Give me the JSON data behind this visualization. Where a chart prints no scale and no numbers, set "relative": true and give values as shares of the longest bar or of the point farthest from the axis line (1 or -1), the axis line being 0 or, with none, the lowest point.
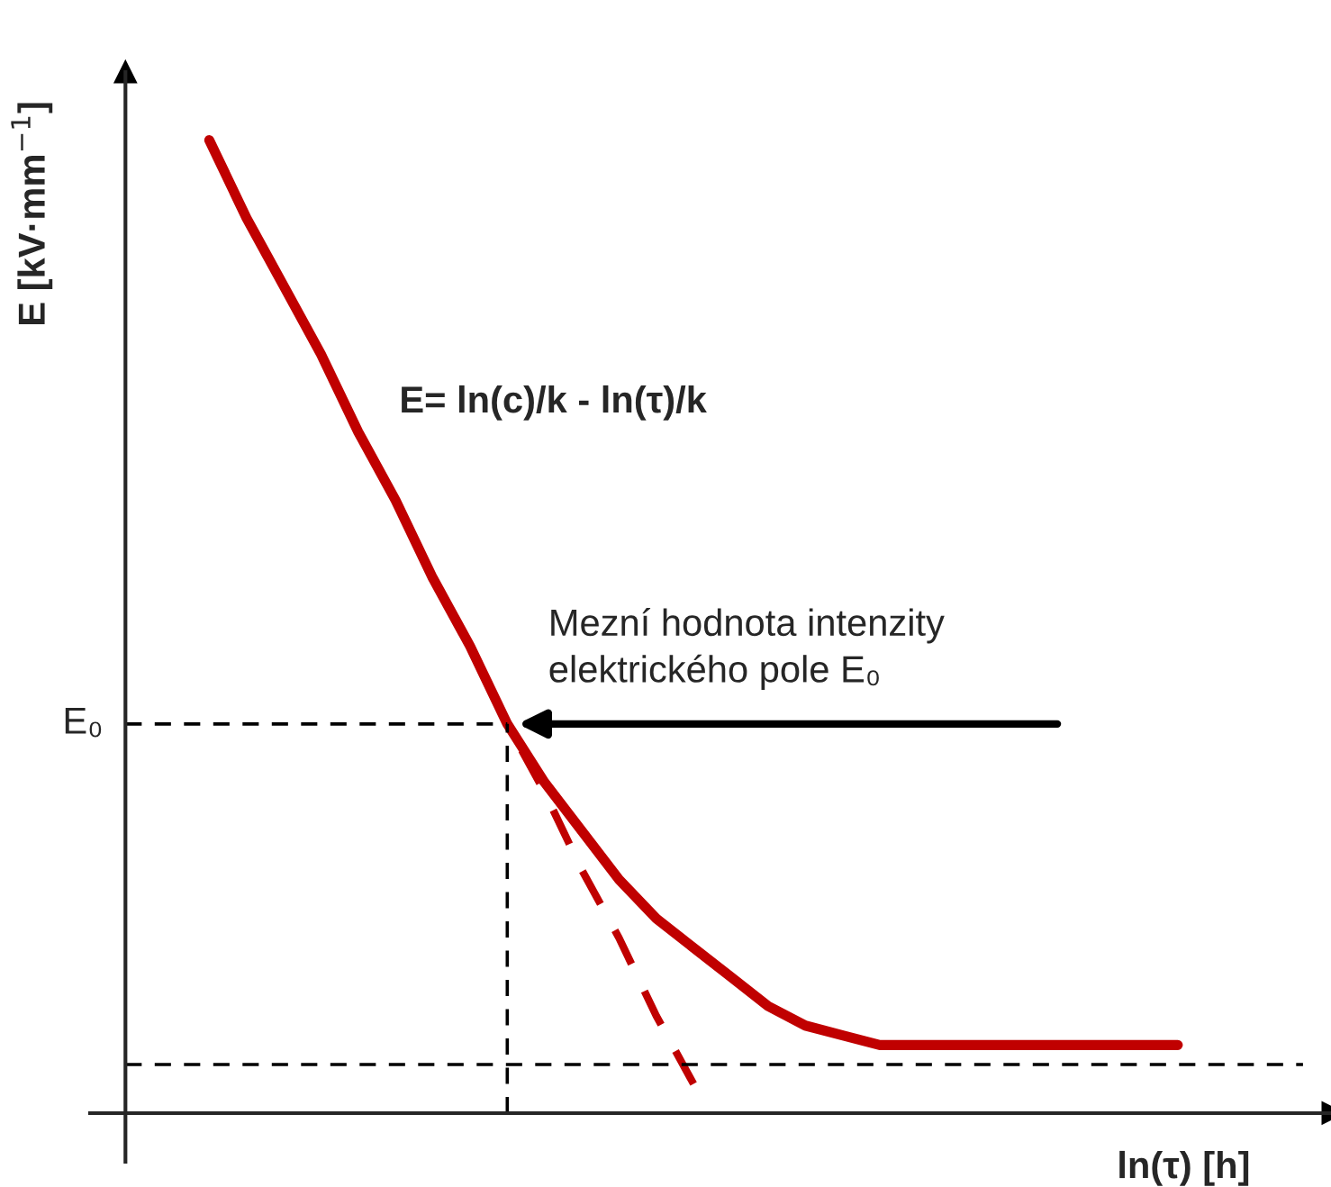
{
  "chart_data": {
    "type": "line",
    "relative": true,
    "xlabel": "ln(τ) [h]",
    "ylabel": "E [kV·mm$^{−1}$]",
    "categories": [
      null,
      null,
      null,
      null,
      null,
      null,
      null,
      null,
      null,
      null,
      null,
      null,
      null,
      null,
      null,
      null,
      null,
      null,
      null,
      null,
      null,
      null,
      null,
      null,
      null,
      null,
      null
    ],
    "series": [
      {
        "color": "#c00000",
        "line_style": "solid",
        "values": [
          1.0,
          0.92,
          0.85,
          0.78,
          0.7,
          0.63,
          0.55,
          0.48,
          0.4,
          0.34,
          0.29,
          0.24,
          0.2,
          0.17,
          0.14,
          0.11,
          0.09,
          0.08,
          0.07,
          0.07,
          0.07,
          0.07,
          0.07,
          0.07,
          0.07,
          0.07,
          0.07
        ]
      },
      {
        "color": "#c00000",
        "line_style": "dashed",
        "values": [
          null,
          null,
          null,
          null,
          null,
          null,
          null,
          null,
          0.4,
          0.33,
          0.25,
          0.18,
          0.1,
          0.03,
          null,
          null,
          null,
          null,
          null,
          null,
          null,
          null,
          null,
          null,
          null,
          null,
          null
        ]
      }
    ],
    "ref_lines": [
      {
        "axis": "y",
        "value": 0.4,
        "label": "E₀",
        "color": "#000000",
        "line_style": "dashed"
      },
      {
        "axis": "y",
        "value": 0.05,
        "color": "#000000",
        "line_style": "dashed"
      }
    ],
    "annotations": [
      "E= ln(c)/k - ln(τ)/k",
      "Mezní hodnota intenzity\nelektrického pole E₀"
    ],
    "legend": false,
    "marker": "none"
  }
}
